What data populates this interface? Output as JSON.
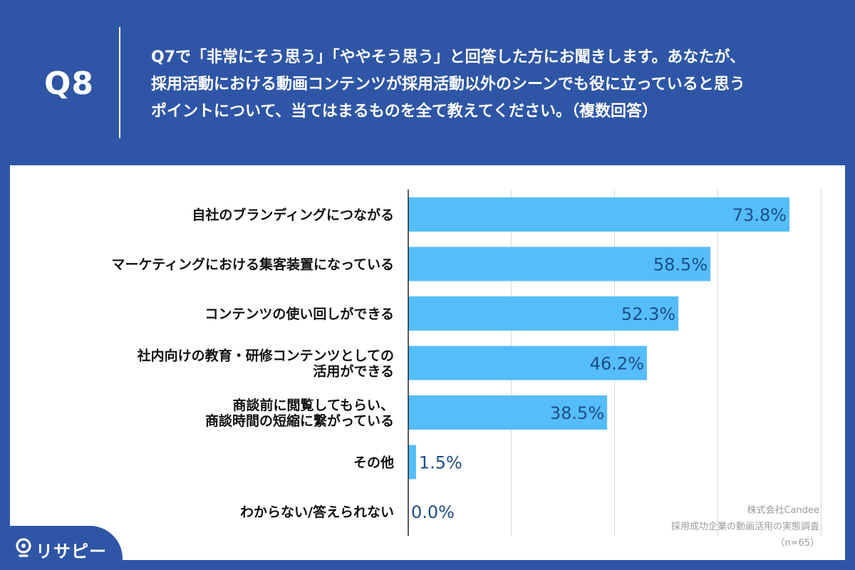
{
  "header": {
    "q_number": "Q8",
    "question": "Q7で「非常にそう思う」「ややそう思う」と回答した方にお聞きします。あなたが、\n採用活動における動画コンテンツが採用活動以外のシーンでも役に立っていると思う\nポイントについて、当てはまるものを全て教えてください。（複数回答）"
  },
  "chart_data": {
    "type": "bar",
    "orientation": "horizontal",
    "categories": [
      "自社のブランディングにつながる",
      "マーケティングにおける集客装置になっている",
      "コンテンツの使い回しができる",
      "社内向けの教育・研修コンテンツとしての\n活用ができる",
      "商談前に閲覧してもらい、\n商談時間の短縮に繋がっている",
      "その他",
      "わからない/答えられない"
    ],
    "values": [
      73.8,
      58.5,
      52.3,
      46.2,
      38.5,
      1.5,
      0.0
    ],
    "value_labels": [
      "73.8%",
      "58.5%",
      "52.3%",
      "46.2%",
      "38.5%",
      "1.5%",
      "0.0%"
    ],
    "xlim": [
      0,
      80
    ],
    "grid": true,
    "bar_color": "#55bdfa",
    "label_color": "#1c4d86"
  },
  "credit": {
    "company": "株式会社Candee",
    "survey": "採用成功企業の動画活用の実態調査",
    "n": "（n=65）"
  },
  "logo": {
    "text": "リサピー",
    "icon": "pin-icon"
  }
}
